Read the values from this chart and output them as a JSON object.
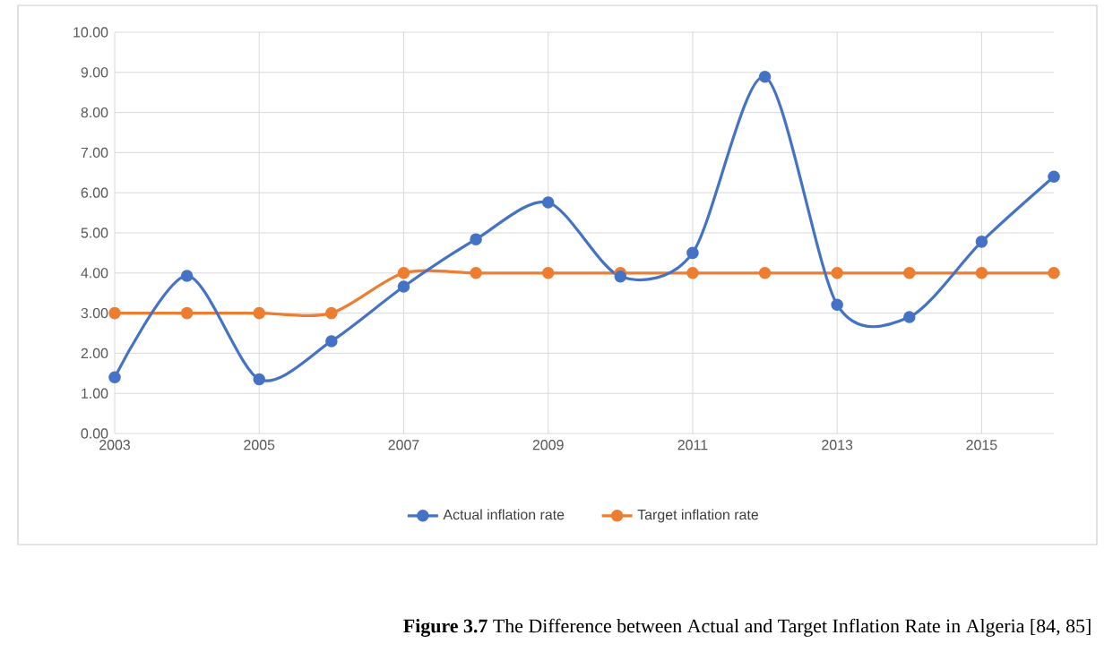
{
  "chart_data": {
    "type": "line",
    "x": [
      2003,
      2004,
      2005,
      2006,
      2007,
      2008,
      2009,
      2010,
      2011,
      2012,
      2013,
      2014,
      2015,
      2016
    ],
    "series": [
      {
        "name": "Actual inflation rate",
        "color": "#4472c4",
        "values": [
          1.4,
          3.93,
          1.35,
          2.3,
          3.66,
          4.84,
          5.76,
          3.91,
          4.5,
          8.89,
          3.21,
          2.9,
          4.78,
          6.4
        ]
      },
      {
        "name": "Target inflation rate",
        "color": "#ed7d31",
        "values": [
          3,
          3,
          3,
          3,
          4,
          4,
          4,
          4,
          4,
          4,
          4,
          4,
          4,
          4
        ]
      }
    ],
    "xlim": [
      2003,
      2016
    ],
    "xticks": [
      2003,
      2005,
      2007,
      2009,
      2011,
      2013,
      2015
    ],
    "ylim": [
      0,
      10
    ],
    "yticks": [
      {
        "value": 0,
        "label": "0.00"
      },
      {
        "value": 1,
        "label": "1.00"
      },
      {
        "value": 2,
        "label": "2.00"
      },
      {
        "value": 3,
        "label": "3.00"
      },
      {
        "value": 4,
        "label": "4.00"
      },
      {
        "value": 5,
        "label": "5.00"
      },
      {
        "value": 6,
        "label": "6.00"
      },
      {
        "value": 7,
        "label": "7.00"
      },
      {
        "value": 8,
        "label": "8.00"
      },
      {
        "value": 9,
        "label": "9.00"
      },
      {
        "value": 10,
        "label": "10.00"
      }
    ],
    "grid": true,
    "legend": "bottom",
    "marker": "circle",
    "line_style": "solid",
    "annotations": [
      "**Figure 3.7** The Difference between Actual and Target Inflation Rate in Algeria [84, 85]"
    ]
  }
}
